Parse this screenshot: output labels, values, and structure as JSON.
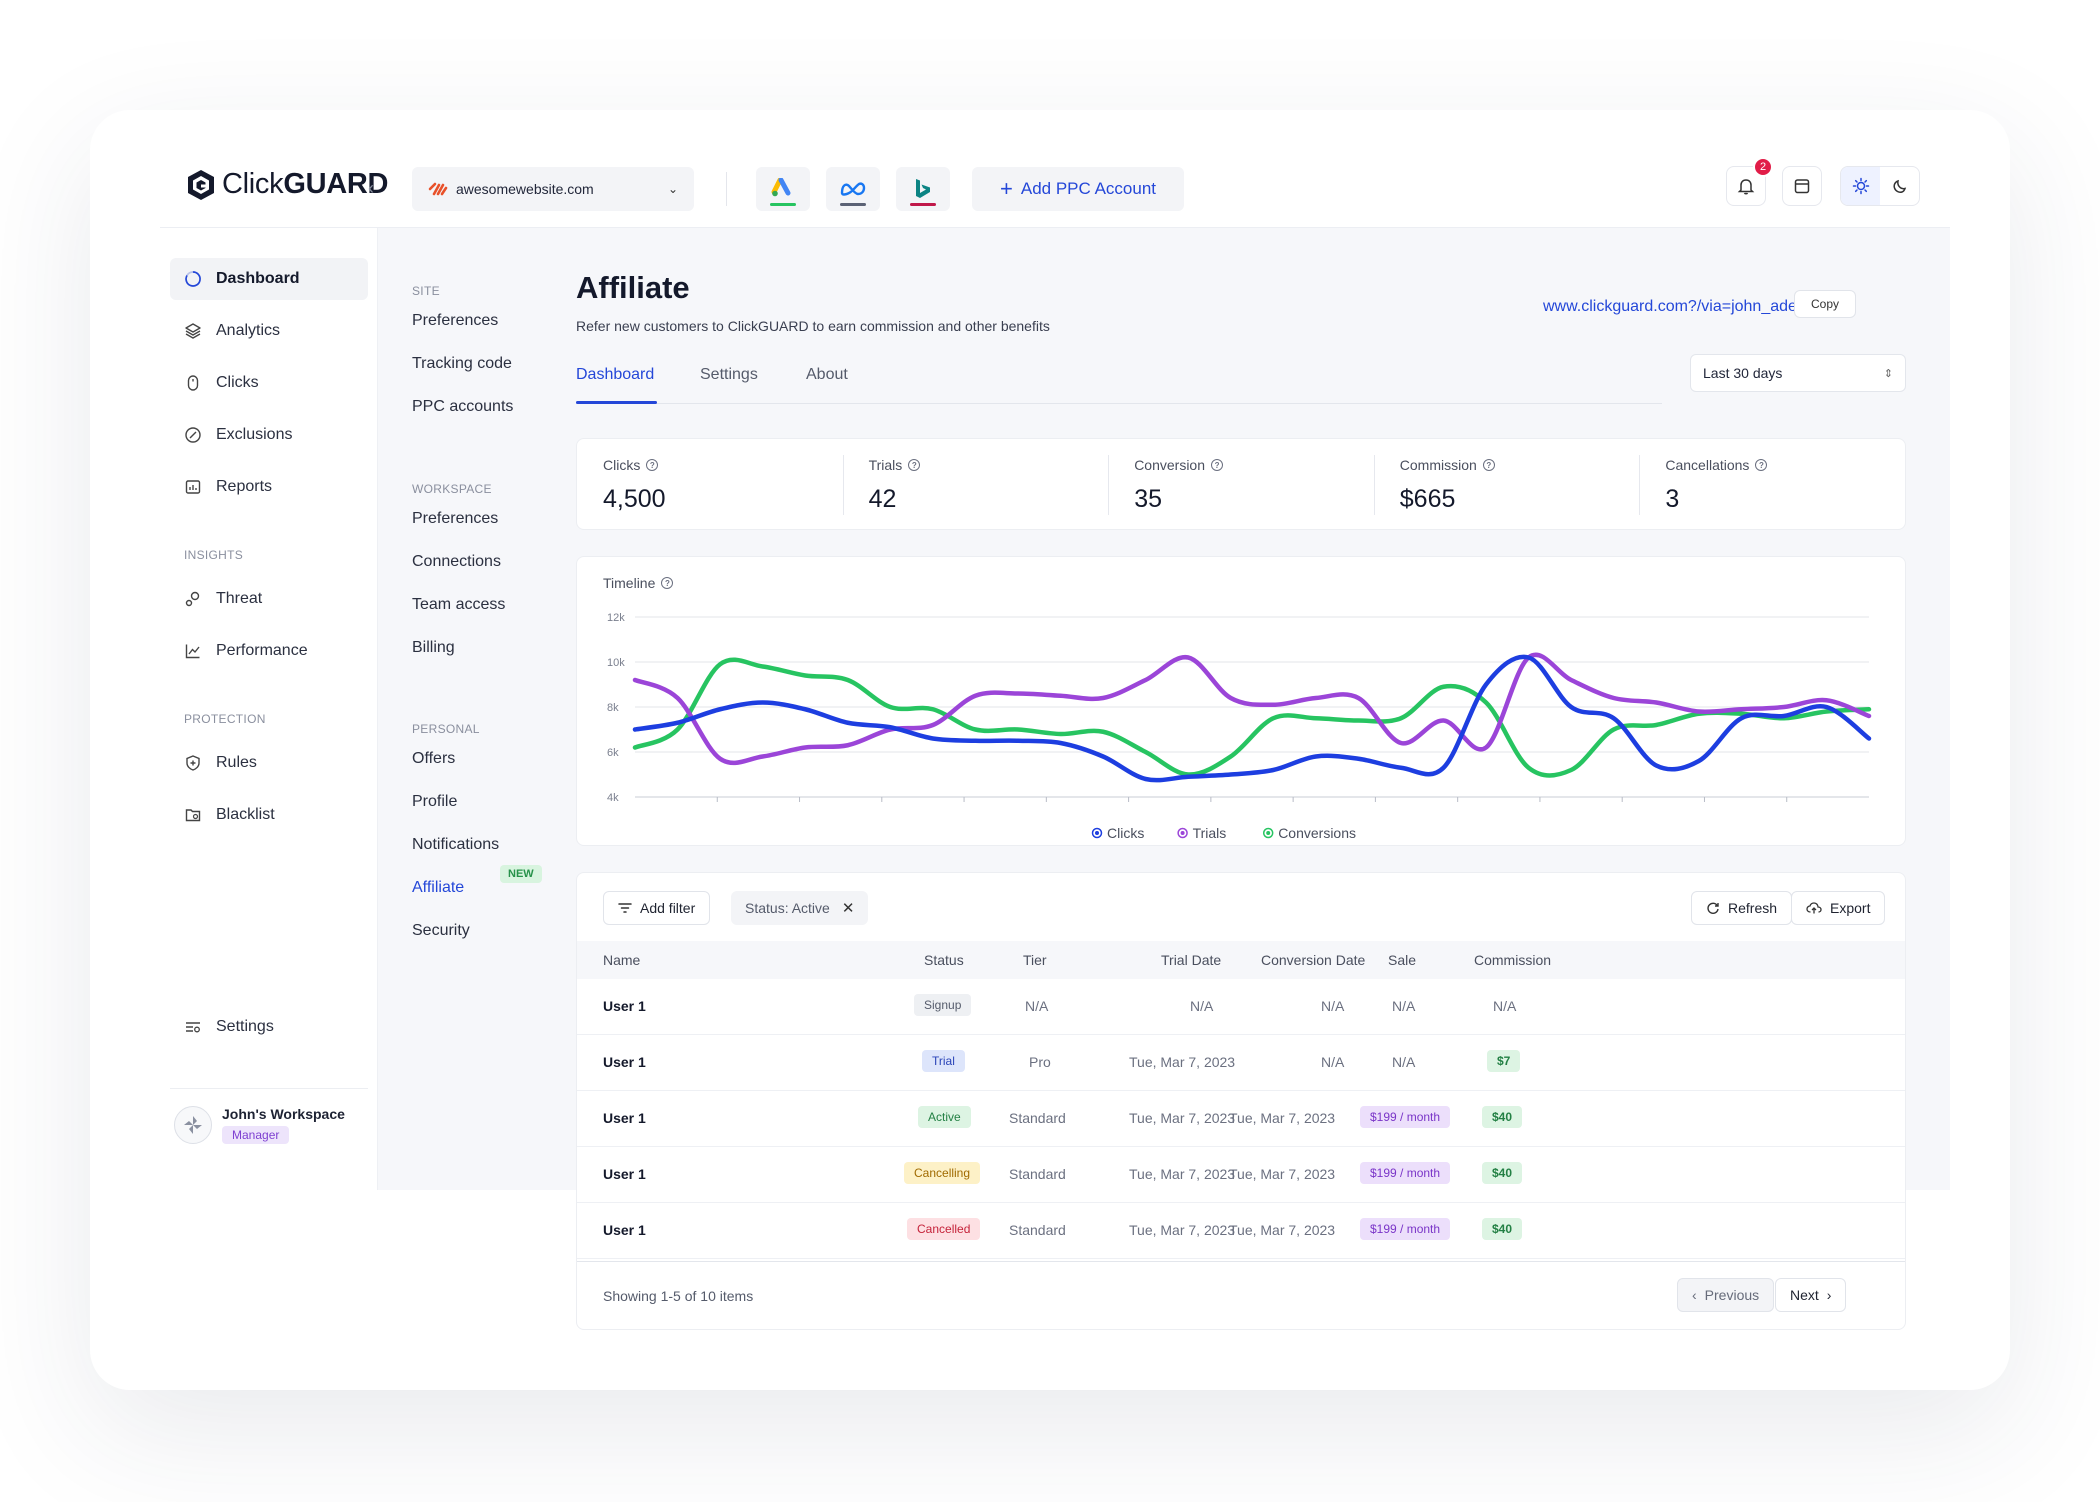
{
  "brand": {
    "name_light": "Click",
    "name_bold": "GUARD"
  },
  "topbar": {
    "site": "awesomewebsite.com",
    "add_ppc_label": "Add PPC Account",
    "notifications_count": "2",
    "platforms": [
      "google-ads",
      "meta",
      "bing"
    ]
  },
  "sidebar": {
    "items": [
      {
        "label": "Dashboard",
        "icon": "dashboard-icon"
      },
      {
        "label": "Analytics",
        "icon": "layers-icon"
      },
      {
        "label": "Clicks",
        "icon": "mouse-icon"
      },
      {
        "label": "Exclusions",
        "icon": "exclude-icon"
      },
      {
        "label": "Reports",
        "icon": "report-icon"
      }
    ],
    "insights_label": "INSIGHTS",
    "insights": [
      {
        "label": "Threat",
        "icon": "threat-icon"
      },
      {
        "label": "Performance",
        "icon": "trend-icon"
      }
    ],
    "protection_label": "PROTECTION",
    "protection": [
      {
        "label": "Rules",
        "icon": "shield-icon"
      },
      {
        "label": "Blacklist",
        "icon": "folder-icon"
      }
    ],
    "settings_label": "Settings",
    "workspace_name": "John's Workspace",
    "workspace_role": "Manager"
  },
  "subnav": {
    "site_label": "SITE",
    "site_items": [
      "Preferences",
      "Tracking code",
      "PPC accounts"
    ],
    "workspace_label": "WORKSPACE",
    "workspace_items": [
      "Preferences",
      "Connections",
      "Team access",
      "Billing"
    ],
    "personal_label": "PERSONAL",
    "personal_items": [
      "Offers",
      "Profile",
      "Notifications",
      "Affiliate",
      "Security"
    ],
    "new_tag": "NEW"
  },
  "page": {
    "title": "Affiliate",
    "subtitle": "Refer new customers to ClickGUARD to earn commission and other benefits",
    "referral_link": "www.clickguard.com?/via=john_adem",
    "copy_label": "Copy",
    "tabs": [
      "Dashboard",
      "Settings",
      "About"
    ],
    "range": "Last 30 days"
  },
  "stats": [
    {
      "label": "Clicks",
      "value": "4,500"
    },
    {
      "label": "Trials",
      "value": "42"
    },
    {
      "label": "Conversion",
      "value": "35"
    },
    {
      "label": "Commission",
      "value": "$665"
    },
    {
      "label": "Cancellations",
      "value": "3"
    }
  ],
  "timeline": {
    "title": "Timeline"
  },
  "chart_data": {
    "type": "line",
    "y_ticks": [
      "12k",
      "10k",
      "8k",
      "6k",
      "4k"
    ],
    "ylim": [
      4000,
      12000
    ],
    "grid": true,
    "legend_position": "bottom-center",
    "x": [
      0,
      1,
      2,
      3,
      4,
      5,
      6,
      7,
      8,
      9,
      10,
      11,
      12,
      13,
      14,
      15,
      16,
      17,
      18,
      19,
      20,
      21,
      22,
      23,
      24,
      25,
      26,
      27,
      28,
      29
    ],
    "series": [
      {
        "name": "Clicks",
        "color": "#1d3ee0",
        "values": [
          7000,
          7300,
          7900,
          8200,
          7900,
          7300,
          7100,
          6600,
          6500,
          6500,
          6400,
          5800,
          4800,
          4900,
          5000,
          5200,
          5800,
          5700,
          5300,
          5300,
          9000,
          10200,
          8000,
          7500,
          5400,
          5600,
          7500,
          7600,
          8000,
          6600
        ]
      },
      {
        "name": "Trials",
        "color": "#9b45d8",
        "values": [
          9200,
          8400,
          5700,
          5800,
          6200,
          6300,
          7000,
          7200,
          8500,
          8600,
          8500,
          8400,
          9200,
          10200,
          8400,
          8100,
          8400,
          8400,
          6400,
          7400,
          6200,
          10200,
          9200,
          8400,
          8200,
          7800,
          7900,
          8000,
          8300,
          7600
        ]
      },
      {
        "name": "Conversions",
        "color": "#27c461",
        "values": [
          6200,
          7000,
          9900,
          9800,
          9400,
          9200,
          8000,
          7900,
          7000,
          7000,
          6800,
          6900,
          6000,
          5000,
          5800,
          7500,
          7500,
          7400,
          7500,
          8900,
          8200,
          5300,
          5200,
          7000,
          7200,
          7700,
          7700,
          7500,
          7800,
          7900
        ]
      }
    ]
  },
  "table": {
    "add_filter": "Add filter",
    "status_filter": "Status: Active",
    "refresh": "Refresh",
    "export": "Export",
    "headers": [
      "Name",
      "Status",
      "Tier",
      "Trial Date",
      "Conversion Date",
      "Sale",
      "Commission"
    ],
    "rows": [
      {
        "name": "User 1",
        "status": "Signup",
        "tier": "N/A",
        "trial": "N/A",
        "conversion": "N/A",
        "sale": "N/A",
        "commission": "N/A"
      },
      {
        "name": "User 1",
        "status": "Trial",
        "tier": "Pro",
        "trial": "Tue, Mar 7, 2023",
        "conversion": "N/A",
        "sale": "N/A",
        "commission": "$7"
      },
      {
        "name": "User 1",
        "status": "Active",
        "tier": "Standard",
        "trial": "Tue, Mar 7, 2023",
        "conversion": "Tue, Mar 7, 2023",
        "sale": "$199 / month",
        "commission": "$40"
      },
      {
        "name": "User 1",
        "status": "Cancelling",
        "tier": "Standard",
        "trial": "Tue, Mar 7, 2023",
        "conversion": "Tue, Mar 7, 2023",
        "sale": "$199 / month",
        "commission": "$40"
      },
      {
        "name": "User 1",
        "status": "Cancelled",
        "tier": "Standard",
        "trial": "Tue, Mar 7, 2023",
        "conversion": "Tue, Mar 7, 2023",
        "sale": "$199 / month",
        "commission": "$40"
      }
    ],
    "showing": "Showing 1-5 of 10 items",
    "previous": "Previous",
    "next": "Next"
  }
}
